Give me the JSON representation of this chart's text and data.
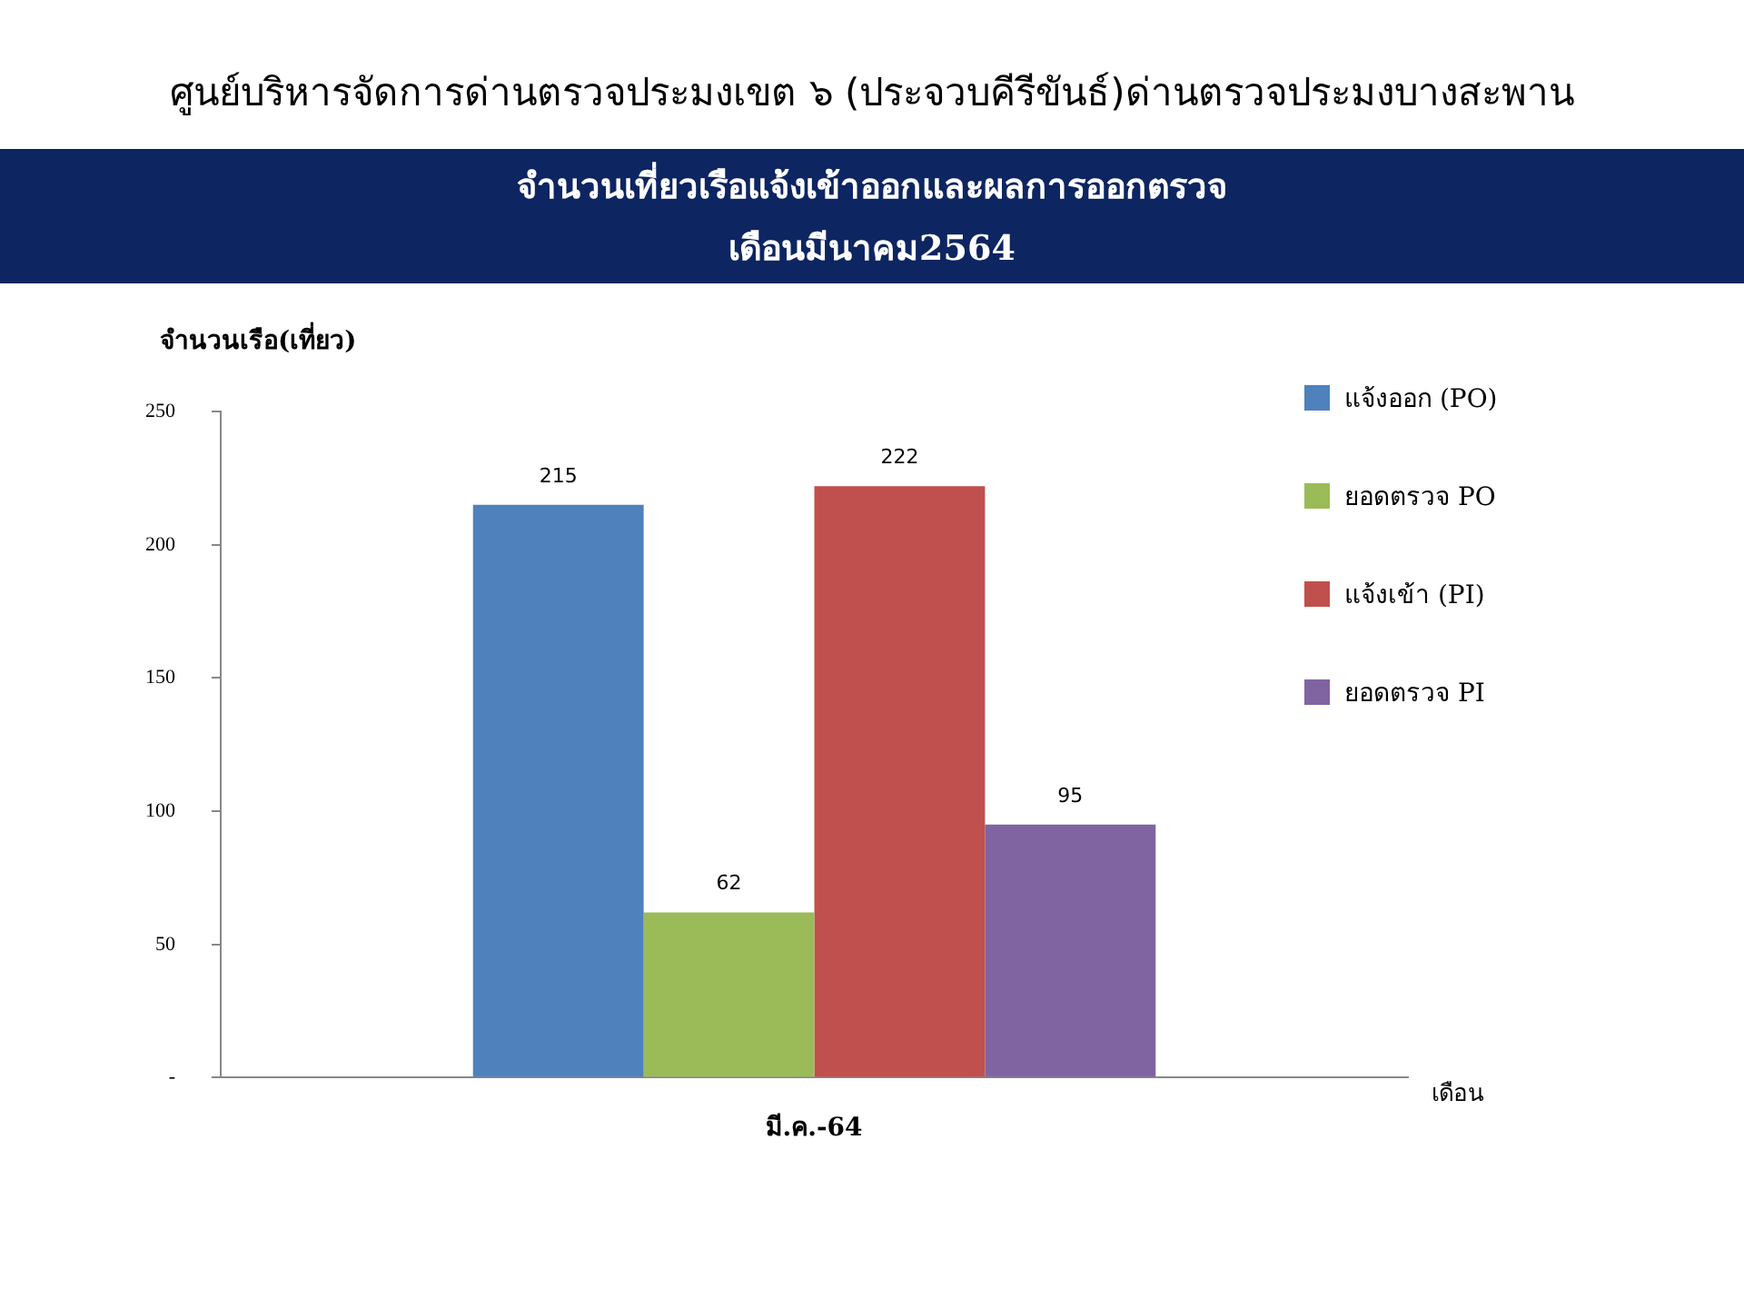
{
  "chart_data": {
    "type": "bar",
    "title": "ศูนย์บริหารจัดการด่านตรวจประมงเขต  ๖ (ประจวบคีรีขันธ์)ด่านตรวจประมงบางสะพาน",
    "subtitle": "จำนวนเที่ยวเรือแจ้งเข้าออกและผลการออกตรวจ\nเดือนมีนาคม2564",
    "ylabel": "จำนวนเรือ(เที่ยว)",
    "xlabel": "เดือน",
    "categories": [
      "มี.ค.-64"
    ],
    "series": [
      {
        "name": "แจ้งออก (PO)",
        "color": "#4f81bd",
        "values": [
          215
        ]
      },
      {
        "name": "ยอดตรวจ PO",
        "color": "#9bbb59",
        "values": [
          62
        ]
      },
      {
        "name": "แจ้งเข้า (PI)",
        "color": "#c0504d",
        "values": [
          222
        ]
      },
      {
        "name": "ยอดตรวจ PI",
        "color": "#8064a2",
        "values": [
          95
        ]
      }
    ],
    "ylim": [
      0,
      250
    ],
    "yticks": [
      {
        "value": 0,
        "label": "-"
      },
      50,
      100,
      150,
      200,
      250
    ],
    "grid": false,
    "legend": "right",
    "data_labels": true
  }
}
